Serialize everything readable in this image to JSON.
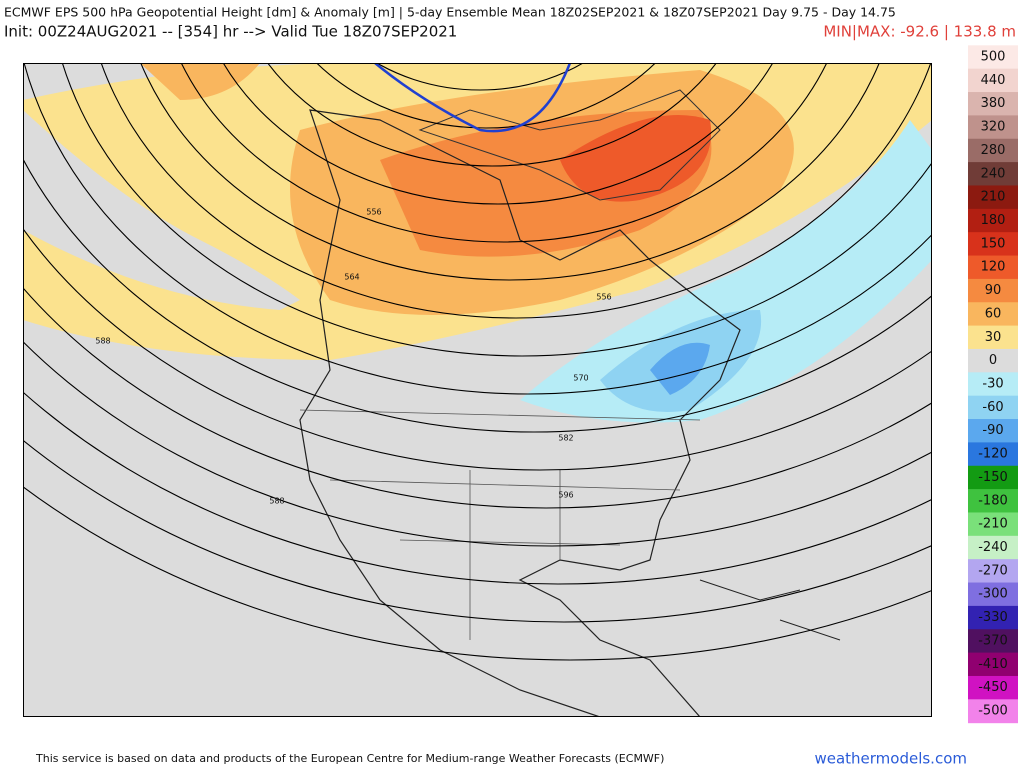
{
  "header": {
    "title": "ECMWF EPS 500 hPa Geopotential Height [dm] & Anomaly [m] | 5-day Ensemble Mean 18Z02SEP2021 & 18Z07SEP2021   Day 9.75 - Day 14.75",
    "init": "Init: 00Z24AUG2021 -- [354] hr --> Valid Tue 18Z07SEP2021",
    "minmax": "MIN|MAX: -92.6 | 133.8 m"
  },
  "contour_labels": [
    "588",
    "564",
    "556",
    "570",
    "582",
    "588",
    "556",
    "596"
  ],
  "colorbar": {
    "labels": [
      "500",
      "440",
      "380",
      "320",
      "280",
      "240",
      "210",
      "180",
      "150",
      "120",
      "90",
      "60",
      "30",
      "0",
      "-30",
      "-60",
      "-90",
      "-120",
      "-150",
      "-180",
      "-210",
      "-240",
      "-270",
      "-300",
      "-330",
      "-370",
      "-410",
      "-450",
      "-500"
    ],
    "colors": [
      "#fce9e6",
      "#f2d4cf",
      "#dab4ae",
      "#bf928c",
      "#9a6c67",
      "#703c37",
      "#8c1a10",
      "#b21f12",
      "#d8321b",
      "#ee5a2a",
      "#f58a40",
      "#f9b65e",
      "#fbe28e",
      "#dcdcdc",
      "#b6ecf6",
      "#8fd3f2",
      "#5ba8ee",
      "#2a77df",
      "#139b13",
      "#3fc23f",
      "#7ae07a",
      "#c6f0c6",
      "#b3a6f0",
      "#7f6fe0",
      "#3222b2",
      "#501060",
      "#900070",
      "#d012c2",
      "#f282ea"
    ]
  },
  "footer": {
    "credit": "This service is based on data and products of the European Centre for Medium-range Weather Forecasts (ECMWF)",
    "site": "weathermodels.com"
  }
}
